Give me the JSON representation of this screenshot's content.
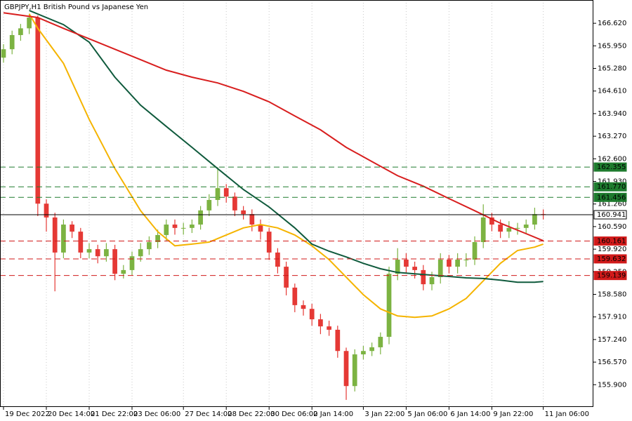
{
  "chart_data": {
    "type": "candlestick",
    "title": "GBPJPY,H1  British Pound vs Japanese Yen",
    "up_color": "#7cb342",
    "down_color": "#e53935",
    "xlim": [
      -0.41,
      68.85
    ],
    "ylim": [
      155.24,
      167.31
    ],
    "yticks": [
      {
        "value": 166.62,
        "label": "166.620"
      },
      {
        "value": 165.95,
        "label": "165.950"
      },
      {
        "value": 165.28,
        "label": "165.280"
      },
      {
        "value": 164.61,
        "label": "164.610"
      },
      {
        "value": 163.94,
        "label": "163.940"
      },
      {
        "value": 163.27,
        "label": "163.270"
      },
      {
        "value": 162.6,
        "label": "162.600"
      },
      {
        "value": 161.93,
        "label": "161.930"
      },
      {
        "value": 161.26,
        "label": "161.260"
      },
      {
        "value": 160.59,
        "label": "160.590"
      },
      {
        "value": 159.92,
        "label": "159.920"
      },
      {
        "value": 159.25,
        "label": "159.250"
      },
      {
        "value": 158.58,
        "label": "158.580"
      },
      {
        "value": 157.91,
        "label": "157.910"
      },
      {
        "value": 157.24,
        "label": "157.240"
      },
      {
        "value": 156.57,
        "label": "156.570"
      },
      {
        "value": 155.9,
        "label": "155.900"
      }
    ],
    "xticks": [
      {
        "value": 0,
        "label": "19 Dec 2022"
      },
      {
        "value": 5,
        "label": "20 Dec 14:00"
      },
      {
        "value": 10,
        "label": "21 Dec 22:00"
      },
      {
        "value": 15,
        "label": "23 Dec 06:00"
      },
      {
        "value": 21,
        "label": "27 Dec 14:00"
      },
      {
        "value": 26,
        "label": "28 Dec 22:00"
      },
      {
        "value": 31,
        "label": "30 Dec 06:00"
      },
      {
        "value": 36,
        "label": "2 Jan 14:00"
      },
      {
        "value": 42,
        "label": "3 Jan 22:00"
      },
      {
        "value": 47,
        "label": "5 Jan 06:00"
      },
      {
        "value": 52,
        "label": "6 Jan 14:00"
      },
      {
        "value": 57,
        "label": "9 Jan 22:00"
      },
      {
        "value": 63,
        "label": "11 Jan 06:00"
      }
    ],
    "open": [
      165.6,
      165.85,
      166.27,
      166.47,
      166.79,
      161.27,
      160.86,
      159.82,
      160.65,
      160.44,
      159.82,
      159.92,
      159.71,
      159.92,
      159.19,
      159.3,
      159.71,
      159.92,
      160.13,
      160.34,
      160.65,
      160.55,
      160.55,
      160.65,
      161.07,
      161.38,
      161.73,
      161.48,
      161.07,
      160.96,
      160.65,
      160.44,
      159.82,
      159.4,
      158.78,
      158.26,
      158.15,
      157.84,
      157.63,
      157.53,
      156.9,
      155.86,
      156.8,
      156.9,
      157.01,
      157.32,
      159.19,
      159.61,
      159.4,
      159.3,
      158.88,
      159.09,
      159.61,
      159.4,
      159.61,
      159.61,
      160.13,
      160.86,
      160.65,
      160.44,
      160.55,
      160.55,
      160.65,
      160.96
    ],
    "high": [
      166.0,
      166.4,
      166.6,
      166.9,
      166.85,
      161.4,
      161.0,
      160.8,
      160.75,
      160.55,
      160.1,
      160.05,
      160.1,
      160.05,
      159.45,
      159.85,
      160.1,
      160.3,
      160.5,
      160.8,
      160.8,
      160.7,
      160.8,
      161.2,
      161.55,
      162.35,
      161.85,
      161.6,
      161.2,
      161.1,
      160.8,
      160.55,
      159.95,
      159.55,
      158.9,
      158.4,
      158.3,
      158.0,
      157.8,
      157.65,
      157.0,
      156.95,
      157.05,
      157.15,
      157.45,
      159.4,
      159.95,
      159.8,
      159.55,
      159.45,
      159.25,
      159.8,
      159.75,
      159.8,
      159.8,
      160.3,
      161.25,
      161.0,
      160.8,
      160.75,
      160.7,
      160.8,
      161.15,
      161.1
    ],
    "low": [
      165.45,
      165.7,
      166.1,
      166.3,
      160.9,
      160.44,
      158.67,
      159.65,
      160.25,
      159.65,
      159.65,
      159.5,
      159.55,
      159.0,
      159.05,
      159.15,
      159.55,
      159.75,
      159.95,
      160.15,
      160.35,
      160.35,
      160.4,
      160.5,
      160.9,
      161.2,
      161.3,
      160.9,
      160.8,
      160.45,
      160.2,
      159.6,
      159.2,
      158.55,
      158.05,
      157.95,
      157.65,
      157.4,
      157.35,
      156.7,
      155.45,
      155.7,
      156.65,
      156.75,
      156.8,
      157.1,
      159.0,
      159.2,
      159.05,
      158.7,
      158.7,
      158.9,
      159.2,
      159.2,
      159.4,
      159.45,
      159.95,
      160.45,
      160.25,
      160.25,
      160.35,
      160.4,
      160.5,
      160.8
    ],
    "close": [
      165.85,
      166.27,
      166.47,
      166.79,
      161.27,
      160.86,
      159.82,
      160.65,
      160.44,
      159.82,
      159.92,
      159.71,
      159.92,
      159.19,
      159.3,
      159.71,
      159.92,
      160.13,
      160.34,
      160.65,
      160.55,
      160.55,
      160.65,
      161.07,
      161.38,
      161.73,
      161.48,
      161.07,
      160.96,
      160.65,
      160.44,
      159.82,
      159.4,
      158.78,
      158.26,
      158.15,
      157.84,
      157.63,
      157.53,
      156.9,
      155.86,
      156.8,
      156.9,
      157.01,
      157.32,
      159.19,
      159.61,
      159.4,
      159.3,
      158.88,
      159.09,
      159.61,
      159.4,
      159.61,
      159.61,
      160.13,
      160.86,
      160.65,
      160.44,
      160.55,
      160.55,
      160.65,
      160.96,
      160.94
    ],
    "series": [
      {
        "color": "#f5b400",
        "x": [
          3,
          4,
          7,
          10,
          13,
          16,
          18,
          20,
          22,
          24,
          26,
          28,
          30,
          32,
          34,
          36,
          38,
          40,
          42,
          44,
          46,
          48,
          50,
          52,
          54,
          56,
          58,
          60,
          62,
          63
        ],
        "values": [
          166.9,
          166.47,
          165.43,
          163.77,
          162.31,
          161.06,
          160.44,
          160.02,
          160.07,
          160.13,
          160.34,
          160.55,
          160.65,
          160.55,
          160.34,
          160.02,
          159.61,
          159.09,
          158.57,
          158.15,
          157.94,
          157.9,
          157.94,
          158.15,
          158.46,
          158.98,
          159.5,
          159.88,
          159.98,
          160.07
        ]
      },
      {
        "color": "#0f5a3c",
        "x": [
          3,
          7,
          10,
          13,
          16,
          19,
          22,
          25,
          28,
          31,
          34,
          36,
          38,
          40,
          42,
          44,
          46,
          48,
          50,
          52,
          54,
          56,
          58,
          60,
          62,
          63
        ],
        "values": [
          167.0,
          166.58,
          166.06,
          165.02,
          164.19,
          163.56,
          162.94,
          162.31,
          161.69,
          161.17,
          160.55,
          160.07,
          159.86,
          159.69,
          159.5,
          159.34,
          159.23,
          159.19,
          159.15,
          159.11,
          159.07,
          159.05,
          159.0,
          158.94,
          158.94,
          158.96
        ]
      },
      {
        "color": "#d81e1e",
        "x": [
          0,
          4,
          7,
          10,
          13,
          16,
          19,
          22,
          25,
          28,
          31,
          34,
          37,
          40,
          43,
          46,
          49,
          52,
          55,
          58,
          61,
          63
        ],
        "values": [
          166.93,
          166.79,
          166.47,
          166.16,
          165.85,
          165.54,
          165.23,
          165.02,
          164.85,
          164.6,
          164.29,
          163.87,
          163.46,
          162.94,
          162.52,
          162.1,
          161.79,
          161.42,
          161.06,
          160.69,
          160.38,
          160.17
        ]
      }
    ],
    "levels": [
      {
        "value": 162.355,
        "label": "162.355",
        "color": "#1e7b2e",
        "style": "dashed"
      },
      {
        "value": 161.77,
        "label": "161.770",
        "color": "#1e7b2e",
        "style": "dashed"
      },
      {
        "value": 161.456,
        "label": "161.456",
        "color": "#1e7b2e",
        "style": "dashed"
      },
      {
        "value": 160.941,
        "label": "160.941",
        "color": "#000000",
        "style": "solid"
      },
      {
        "value": 160.161,
        "label": "160.161",
        "color": "#d11a1a",
        "style": "dashed"
      },
      {
        "value": 159.632,
        "label": "159.632",
        "color": "#d11a1a",
        "style": "dashed"
      },
      {
        "value": 159.139,
        "label": "159.139",
        "color": "#d11a1a",
        "style": "dashed"
      }
    ]
  }
}
